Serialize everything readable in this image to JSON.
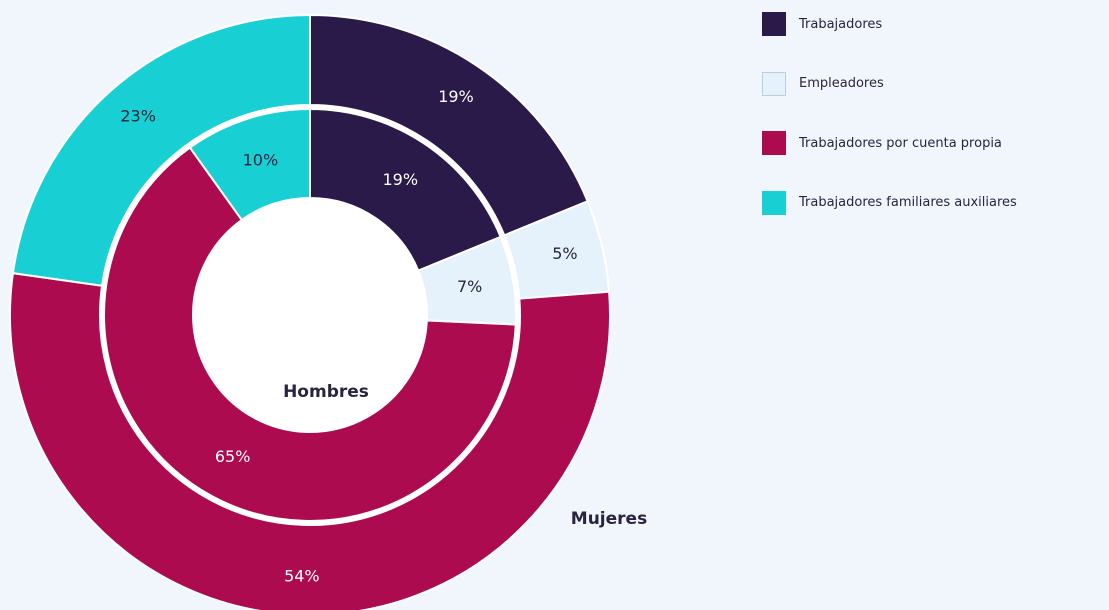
{
  "chart_data": {
    "type": "pie",
    "categories": [
      "Trabajadores",
      "Empleadores",
      "Trabajadores por cuenta propia",
      "Trabajadores familiares auxiliares"
    ],
    "colors": [
      "#2a1a4a",
      "#e6f2fb",
      "#ad0b50",
      "#18d0d3"
    ],
    "series": [
      {
        "name": "Hombres",
        "values": [
          19,
          7,
          65,
          10
        ],
        "labels": [
          "19%",
          "7%",
          "65%",
          "10%"
        ]
      },
      {
        "name": "Mujeres",
        "values": [
          19,
          5,
          54,
          23
        ],
        "labels": [
          "19%",
          "5%",
          "54%",
          "23%"
        ]
      }
    ]
  },
  "legend": {
    "items": [
      {
        "label": "Trabajadores",
        "color": "#2a1a4a"
      },
      {
        "label": "Empleadores",
        "color": "#e6f2fb"
      },
      {
        "label": "Trabajadores por cuenta propia",
        "color": "#ad0b50"
      },
      {
        "label": "Trabajadores familiares auxiliares",
        "color": "#18d0d3"
      }
    ]
  }
}
